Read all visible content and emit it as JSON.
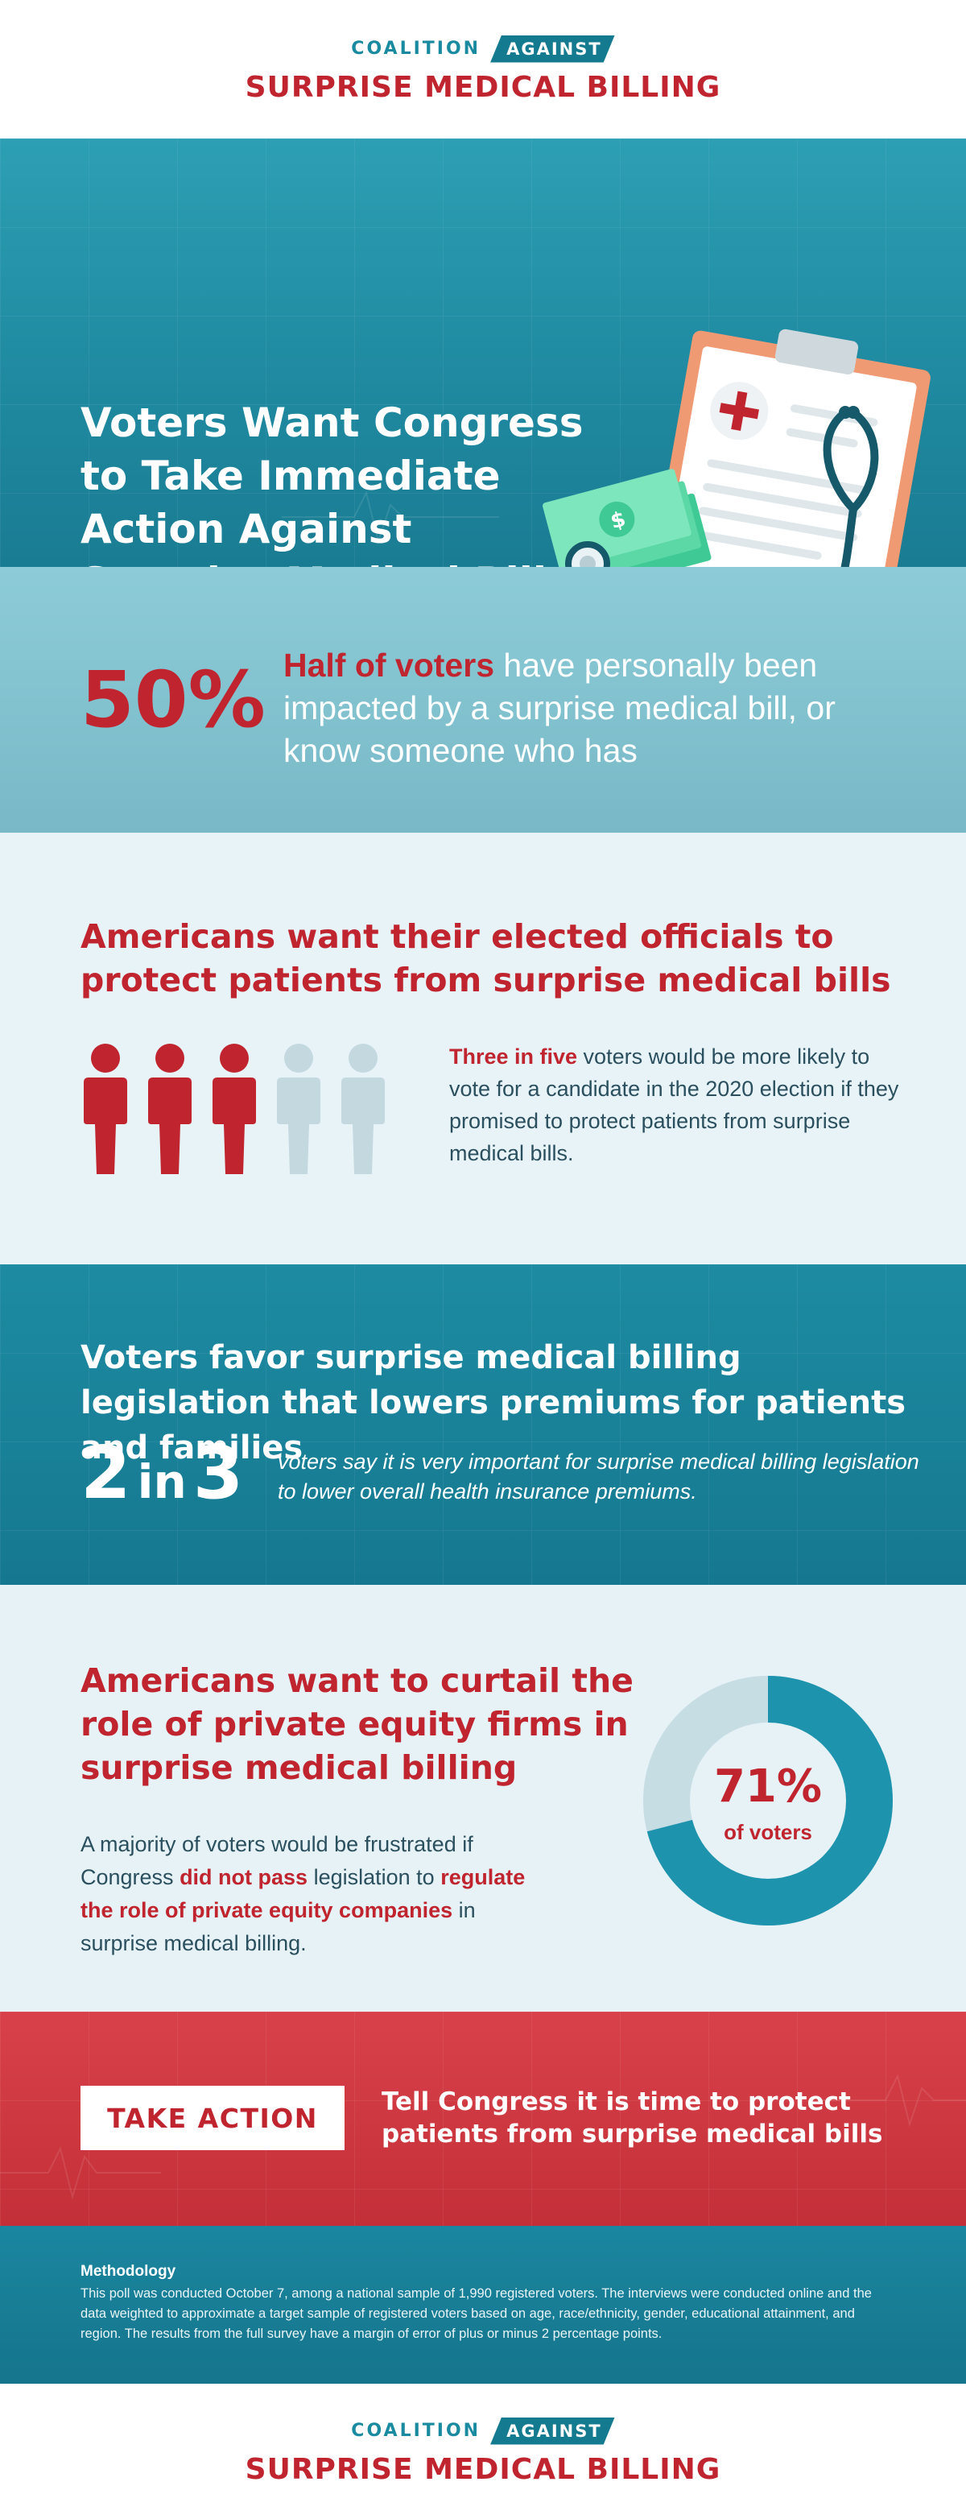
{
  "logo": {
    "coalition": "COALITION",
    "against": "AGAINST",
    "name": "SURPRISE MEDICAL BILLING"
  },
  "hero": {
    "title": "Voters Want Congress to Take Immediate Action Against Surprise Medical Bills"
  },
  "stat": {
    "value": "50%",
    "highlight": "Half of voters",
    "text": " have personally been impacted by a surprise medical bill, or know someone who has"
  },
  "officials": {
    "heading": "Americans want their elected officials to protect patients from surprise medical bills",
    "highlight": "Three in five",
    "text": " voters would be more likely to vote for a candidate in the 2020 election if they promised to protect patients from surprise medical bills.",
    "people_total": 5,
    "people_highlighted": 3
  },
  "premiums": {
    "heading_before": "Voters favor surprise medical billing legislation that ",
    "heading_bold": "lowers",
    "heading_after": " premiums for patients and families",
    "num1": "2",
    "in": "in",
    "num2": "3",
    "text": "voters say it is very important for surprise medical billing legislation to lower overall health insurance premiums."
  },
  "equity": {
    "heading": "Americans want to curtail the role of private equity firms in surprise medical billing",
    "text1": "A majority of voters would be frustrated if Congress ",
    "hl1": "did not pass",
    "text2": " legislation to ",
    "hl2": "regulate the role of private equity companies",
    "text3": " in surprise medical billing.",
    "donut_value": "71%",
    "donut_label": "of voters",
    "percent": 71
  },
  "action": {
    "button": "TAKE ACTION",
    "text": "Tell Congress it is time to protect patients from surprise medical bills"
  },
  "methodology": {
    "title": "Methodology",
    "text": "This poll was conducted October 7, among a national sample of 1,990 registered voters. The interviews were conducted online and the data weighted to approximate a target sample of registered voters based on age, race/ethnicity, gender, educational attainment, and region. The results from the full survey have a margin of error of plus or minus 2 percentage points."
  },
  "colors": {
    "brand_red": "#c0252f",
    "brand_teal": "#137a8f",
    "light_teal": "#8ccbd7",
    "pale_blue": "#e8f3f8"
  }
}
